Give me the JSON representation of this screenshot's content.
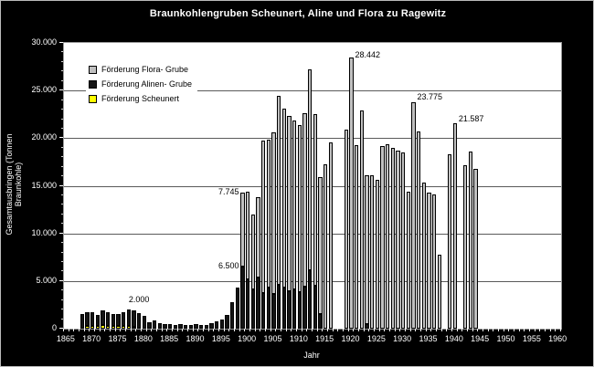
{
  "chart_data": {
    "type": "bar",
    "subtype": "stacked",
    "title": "Braunkohlengruben Scheunert, Aline und Flora zu Ragewitz",
    "xlabel": "Jahr",
    "ylabel": "Gesamtausbringen (Tonnen Braunkohle)",
    "ylim": [
      0,
      30000
    ],
    "y_major_interval": 5000,
    "y_minor_interval": 1000,
    "y_tick_labels": [
      "0",
      "5.000",
      "10.000",
      "15.000",
      "20.000",
      "25.000",
      "30.000"
    ],
    "x_start": 1865,
    "x_end": 1960,
    "x_tick_labels": [
      "1865",
      "1870",
      "1875",
      "1880",
      "1885",
      "1890",
      "1895",
      "1900",
      "1905",
      "1910",
      "1915",
      "1920",
      "1925",
      "1930",
      "1935",
      "1940",
      "1945",
      "1950",
      "1955",
      "1960"
    ],
    "grid": "horizontal-behind-bars",
    "legend_position": "top-left-inside",
    "series": [
      {
        "name": "Förderung Flora- Grube",
        "color": "#c0c0c0",
        "stack_level": 3
      },
      {
        "name": "Förderung Alinen- Grube",
        "color": "#141414",
        "stack_level": 2
      },
      {
        "name": "Förderung Scheunert",
        "color": "#ffff00",
        "stack_level": 1
      }
    ],
    "columns": [
      "year",
      "scheunert",
      "alinen",
      "flora"
    ],
    "rows": [
      [
        1868,
        0,
        1500,
        0
      ],
      [
        1869,
        250,
        1500,
        0
      ],
      [
        1870,
        300,
        1400,
        0
      ],
      [
        1871,
        250,
        1150,
        0
      ],
      [
        1872,
        350,
        1550,
        0
      ],
      [
        1873,
        300,
        1400,
        0
      ],
      [
        1874,
        250,
        1300,
        0
      ],
      [
        1875,
        300,
        1200,
        0
      ],
      [
        1876,
        250,
        1500,
        0
      ],
      [
        1877,
        300,
        1700,
        0
      ],
      [
        1878,
        200,
        1750,
        0
      ],
      [
        1879,
        0,
        1600,
        0
      ],
      [
        1880,
        0,
        1300,
        0
      ],
      [
        1881,
        0,
        700,
        0
      ],
      [
        1882,
        0,
        850,
        0
      ],
      [
        1883,
        0,
        600,
        0
      ],
      [
        1884,
        0,
        520,
        0
      ],
      [
        1885,
        0,
        500,
        0
      ],
      [
        1886,
        0,
        420,
        0
      ],
      [
        1887,
        0,
        500,
        0
      ],
      [
        1888,
        0,
        430,
        0
      ],
      [
        1889,
        0,
        400,
        0
      ],
      [
        1890,
        0,
        480,
        0
      ],
      [
        1891,
        0,
        350,
        0
      ],
      [
        1892,
        0,
        420,
        0
      ],
      [
        1893,
        0,
        600,
        0
      ],
      [
        1894,
        0,
        800,
        0
      ],
      [
        1895,
        0,
        950,
        0
      ],
      [
        1896,
        0,
        1400,
        0
      ],
      [
        1897,
        0,
        2800,
        0
      ],
      [
        1898,
        0,
        4300,
        0
      ],
      [
        1899,
        0,
        6500,
        7745
      ],
      [
        1900,
        0,
        5200,
        9200
      ],
      [
        1901,
        0,
        4100,
        7900
      ],
      [
        1902,
        0,
        5400,
        8400
      ],
      [
        1903,
        0,
        3700,
        16000
      ],
      [
        1904,
        0,
        4300,
        15500
      ],
      [
        1905,
        0,
        3600,
        17000
      ],
      [
        1906,
        0,
        4600,
        19800
      ],
      [
        1907,
        0,
        4300,
        18800
      ],
      [
        1908,
        0,
        3900,
        18400
      ],
      [
        1909,
        0,
        4100,
        17800
      ],
      [
        1910,
        0,
        3800,
        17600
      ],
      [
        1911,
        0,
        4400,
        18200
      ],
      [
        1912,
        0,
        6100,
        21100
      ],
      [
        1913,
        0,
        4500,
        18000
      ],
      [
        1914,
        0,
        1500,
        14400
      ],
      [
        1915,
        0,
        0,
        17300
      ],
      [
        1916,
        0,
        0,
        19600
      ],
      [
        1919,
        0,
        0,
        20900
      ],
      [
        1920,
        0,
        0,
        28442
      ],
      [
        1921,
        0,
        0,
        19300
      ],
      [
        1922,
        0,
        0,
        22900
      ],
      [
        1923,
        0,
        500,
        15600
      ],
      [
        1924,
        0,
        0,
        16100
      ],
      [
        1925,
        0,
        0,
        15600
      ],
      [
        1926,
        0,
        0,
        19200
      ],
      [
        1927,
        0,
        0,
        19400
      ],
      [
        1928,
        0,
        0,
        19000
      ],
      [
        1929,
        0,
        0,
        18700
      ],
      [
        1930,
        0,
        0,
        18500
      ],
      [
        1931,
        0,
        0,
        14400
      ],
      [
        1932,
        0,
        0,
        23775
      ],
      [
        1933,
        0,
        0,
        20700
      ],
      [
        1934,
        0,
        0,
        15300
      ],
      [
        1935,
        0,
        0,
        14300
      ],
      [
        1936,
        0,
        0,
        14100
      ],
      [
        1937,
        0,
        0,
        7800
      ],
      [
        1939,
        0,
        0,
        18300
      ],
      [
        1940,
        0,
        0,
        21587
      ],
      [
        1942,
        0,
        0,
        17200
      ],
      [
        1943,
        0,
        0,
        18600
      ],
      [
        1944,
        0,
        0,
        16800
      ]
    ],
    "annotations": [
      {
        "text": "2.000",
        "year": 1879,
        "value": 2500,
        "anchor": "center"
      },
      {
        "text": "6.500",
        "year": 1899,
        "value": 6600,
        "anchor": "left"
      },
      {
        "text": "7.745",
        "year": 1899,
        "value": 14400,
        "anchor": "left"
      },
      {
        "text": "28.442",
        "year": 1920,
        "value": 28800,
        "anchor": "right"
      },
      {
        "text": "23.775",
        "year": 1932,
        "value": 24300,
        "anchor": "right"
      },
      {
        "text": "21.587",
        "year": 1940,
        "value": 22000,
        "anchor": "right"
      }
    ]
  }
}
